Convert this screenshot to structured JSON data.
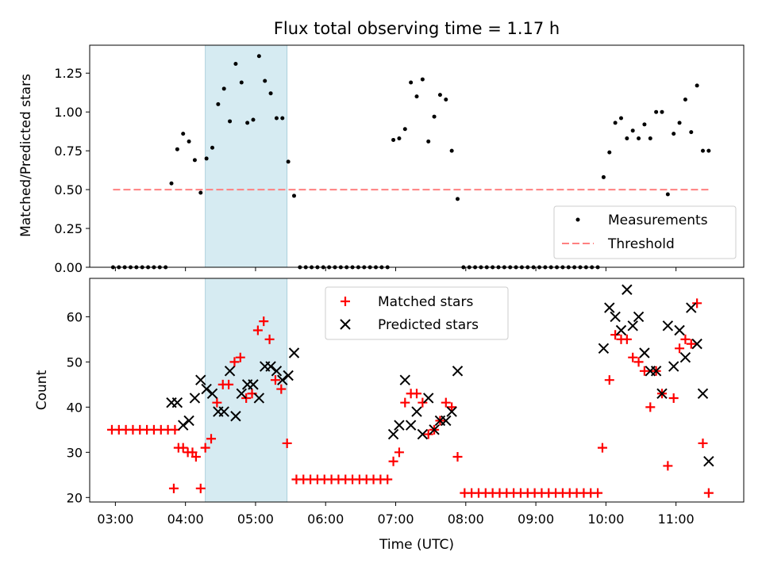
{
  "chart_data": [
    {
      "type": "scatter",
      "title": "Flux total observing time = 1.17 h",
      "xlabel": "",
      "ylabel": "Matched/Predicted stars",
      "ylim": [
        0,
        1.43
      ],
      "yticks": [
        "0.00",
        "0.25",
        "0.50",
        "0.75",
        "1.00",
        "1.25"
      ],
      "x_tick_labels_shown": false,
      "highlight_span": [
        "04:17",
        "05:27"
      ],
      "legend": {
        "position": "lower right",
        "entries": [
          "Measurements",
          "Threshold"
        ]
      },
      "series": [
        {
          "name": "Measurements",
          "marker": "dot",
          "color": "#000000",
          "points": [
            [
              "02:58",
              0
            ],
            [
              "03:03",
              0
            ],
            [
              "03:08",
              0
            ],
            [
              "03:13",
              0
            ],
            [
              "03:18",
              0
            ],
            [
              "03:23",
              0
            ],
            [
              "03:28",
              0
            ],
            [
              "03:33",
              0
            ],
            [
              "03:38",
              0
            ],
            [
              "03:43",
              0
            ],
            [
              "03:48",
              0.54
            ],
            [
              "03:53",
              0.76
            ],
            [
              "03:58",
              0.86
            ],
            [
              "04:03",
              0.81
            ],
            [
              "04:08",
              0.69
            ],
            [
              "04:13",
              0.48
            ],
            [
              "04:18",
              0.7
            ],
            [
              "04:23",
              0.77
            ],
            [
              "04:28",
              1.05
            ],
            [
              "04:33",
              1.15
            ],
            [
              "04:38",
              0.94
            ],
            [
              "04:43",
              1.31
            ],
            [
              "04:48",
              1.19
            ],
            [
              "04:53",
              0.93
            ],
            [
              "04:58",
              0.95
            ],
            [
              "05:03",
              1.36
            ],
            [
              "05:08",
              1.2
            ],
            [
              "05:13",
              1.12
            ],
            [
              "05:18",
              0.96
            ],
            [
              "05:23",
              0.96
            ],
            [
              "05:28",
              0.68
            ],
            [
              "05:33",
              0.46
            ],
            [
              "05:38",
              0
            ],
            [
              "05:43",
              0
            ],
            [
              "05:48",
              0
            ],
            [
              "05:53",
              0
            ],
            [
              "05:58",
              0
            ],
            [
              "06:03",
              0
            ],
            [
              "06:08",
              0
            ],
            [
              "06:13",
              0
            ],
            [
              "06:18",
              0
            ],
            [
              "06:23",
              0
            ],
            [
              "06:28",
              0
            ],
            [
              "06:33",
              0
            ],
            [
              "06:38",
              0
            ],
            [
              "06:43",
              0
            ],
            [
              "06:48",
              0
            ],
            [
              "06:53",
              0
            ],
            [
              "06:58",
              0.82
            ],
            [
              "07:03",
              0.83
            ],
            [
              "07:08",
              0.89
            ],
            [
              "07:13",
              1.19
            ],
            [
              "07:18",
              1.1
            ],
            [
              "07:23",
              1.21
            ],
            [
              "07:28",
              0.81
            ],
            [
              "07:33",
              0.97
            ],
            [
              "07:38",
              1.11
            ],
            [
              "07:43",
              1.08
            ],
            [
              "07:48",
              0.75
            ],
            [
              "07:53",
              0.44
            ],
            [
              "07:58",
              0
            ],
            [
              "08:03",
              0
            ],
            [
              "08:08",
              0
            ],
            [
              "08:13",
              0
            ],
            [
              "08:18",
              0
            ],
            [
              "08:23",
              0
            ],
            [
              "08:28",
              0
            ],
            [
              "08:33",
              0
            ],
            [
              "08:38",
              0
            ],
            [
              "08:43",
              0
            ],
            [
              "08:48",
              0
            ],
            [
              "08:53",
              0
            ],
            [
              "08:58",
              0
            ],
            [
              "09:03",
              0
            ],
            [
              "09:08",
              0
            ],
            [
              "09:13",
              0
            ],
            [
              "09:18",
              0
            ],
            [
              "09:23",
              0
            ],
            [
              "09:28",
              0
            ],
            [
              "09:33",
              0
            ],
            [
              "09:38",
              0
            ],
            [
              "09:43",
              0
            ],
            [
              "09:48",
              0
            ],
            [
              "09:53",
              0
            ],
            [
              "09:58",
              0.58
            ],
            [
              "10:03",
              0.74
            ],
            [
              "10:08",
              0.93
            ],
            [
              "10:13",
              0.96
            ],
            [
              "10:18",
              0.83
            ],
            [
              "10:23",
              0.88
            ],
            [
              "10:28",
              0.83
            ],
            [
              "10:33",
              0.92
            ],
            [
              "10:38",
              0.83
            ],
            [
              "10:43",
              1.0
            ],
            [
              "10:48",
              1.0
            ],
            [
              "10:53",
              0.47
            ],
            [
              "10:58",
              0.86
            ],
            [
              "11:03",
              0.93
            ],
            [
              "11:08",
              1.08
            ],
            [
              "11:13",
              0.87
            ],
            [
              "11:18",
              1.17
            ],
            [
              "11:23",
              0.75
            ],
            [
              "11:28",
              0.75
            ]
          ]
        },
        {
          "name": "Threshold",
          "style": "dashed",
          "color": "#ff8080",
          "points": [
            [
              "02:58",
              0.5
            ],
            [
              "11:28",
              0.5
            ]
          ]
        }
      ]
    },
    {
      "type": "scatter",
      "title": "",
      "xlabel": "Time (UTC)",
      "ylabel": "Count",
      "ylim": [
        19,
        68.5
      ],
      "yticks": [
        "20",
        "30",
        "40",
        "50",
        "60"
      ],
      "xlim": [
        "02:38",
        "11:58"
      ],
      "x_tick_labels": [
        "03:00",
        "04:00",
        "05:00",
        "06:00",
        "07:00",
        "08:00",
        "09:00",
        "10:00",
        "11:00"
      ],
      "highlight_span": [
        "04:17",
        "05:27"
      ],
      "legend": {
        "position": "upper center",
        "entries": [
          "Matched stars",
          "Predicted stars"
        ]
      },
      "series": [
        {
          "name": "Matched stars",
          "marker": "plus",
          "color": "#ff0000",
          "points": [
            [
              "02:57",
              35
            ],
            [
              "03:03",
              35
            ],
            [
              "03:09",
              35
            ],
            [
              "03:15",
              35
            ],
            [
              "03:21",
              35
            ],
            [
              "03:27",
              35
            ],
            [
              "03:33",
              35
            ],
            [
              "03:39",
              35
            ],
            [
              "03:45",
              35
            ],
            [
              "03:51",
              35
            ],
            [
              "03:50",
              22
            ],
            [
              "03:54",
              31
            ],
            [
              "03:58",
              31
            ],
            [
              "04:02",
              30
            ],
            [
              "04:06",
              30
            ],
            [
              "04:09",
              29
            ],
            [
              "04:13",
              22
            ],
            [
              "04:17",
              31
            ],
            [
              "04:22",
              33
            ],
            [
              "04:27",
              41
            ],
            [
              "04:32",
              45
            ],
            [
              "04:37",
              45
            ],
            [
              "04:42",
              50
            ],
            [
              "04:47",
              51
            ],
            [
              "04:52",
              42
            ],
            [
              "04:57",
              43
            ],
            [
              "05:02",
              57
            ],
            [
              "05:07",
              59
            ],
            [
              "05:12",
              55
            ],
            [
              "05:17",
              46
            ],
            [
              "05:22",
              44
            ],
            [
              "05:27",
              32
            ],
            [
              "05:35",
              24
            ],
            [
              "05:41",
              24
            ],
            [
              "05:47",
              24
            ],
            [
              "05:53",
              24
            ],
            [
              "05:59",
              24
            ],
            [
              "06:05",
              24
            ],
            [
              "06:11",
              24
            ],
            [
              "06:17",
              24
            ],
            [
              "06:23",
              24
            ],
            [
              "06:29",
              24
            ],
            [
              "06:35",
              24
            ],
            [
              "06:41",
              24
            ],
            [
              "06:47",
              24
            ],
            [
              "06:53",
              24
            ],
            [
              "06:58",
              28
            ],
            [
              "07:03",
              30
            ],
            [
              "07:08",
              41
            ],
            [
              "07:13",
              43
            ],
            [
              "07:18",
              43
            ],
            [
              "07:23",
              41
            ],
            [
              "07:28",
              34
            ],
            [
              "07:33",
              35
            ],
            [
              "07:38",
              37
            ],
            [
              "07:43",
              41
            ],
            [
              "07:48",
              40
            ],
            [
              "07:53",
              29
            ],
            [
              "07:59",
              21
            ],
            [
              "08:05",
              21
            ],
            [
              "08:11",
              21
            ],
            [
              "08:17",
              21
            ],
            [
              "08:23",
              21
            ],
            [
              "08:29",
              21
            ],
            [
              "08:35",
              21
            ],
            [
              "08:41",
              21
            ],
            [
              "08:47",
              21
            ],
            [
              "08:53",
              21
            ],
            [
              "08:59",
              21
            ],
            [
              "09:05",
              21
            ],
            [
              "09:11",
              21
            ],
            [
              "09:17",
              21
            ],
            [
              "09:23",
              21
            ],
            [
              "09:29",
              21
            ],
            [
              "09:35",
              21
            ],
            [
              "09:41",
              21
            ],
            [
              "09:47",
              21
            ],
            [
              "09:53",
              21
            ],
            [
              "09:57",
              31
            ],
            [
              "10:03",
              46
            ],
            [
              "10:08",
              56
            ],
            [
              "10:13",
              55
            ],
            [
              "10:18",
              55
            ],
            [
              "10:23",
              51
            ],
            [
              "10:28",
              50
            ],
            [
              "10:33",
              48
            ],
            [
              "10:38",
              40
            ],
            [
              "10:43",
              48
            ],
            [
              "10:48",
              43
            ],
            [
              "10:53",
              27
            ],
            [
              "10:58",
              42
            ],
            [
              "11:03",
              53
            ],
            [
              "11:08",
              55
            ],
            [
              "11:13",
              54
            ],
            [
              "11:18",
              63
            ],
            [
              "11:23",
              32
            ],
            [
              "11:28",
              21
            ]
          ]
        },
        {
          "name": "Predicted stars",
          "marker": "x",
          "color": "#000000",
          "points": [
            [
              "03:48",
              41
            ],
            [
              "03:53",
              41
            ],
            [
              "03:58",
              36
            ],
            [
              "04:03",
              37
            ],
            [
              "04:08",
              42
            ],
            [
              "04:13",
              46
            ],
            [
              "04:18",
              44
            ],
            [
              "04:23",
              43
            ],
            [
              "04:28",
              39
            ],
            [
              "04:33",
              39
            ],
            [
              "04:38",
              48
            ],
            [
              "04:43",
              38
            ],
            [
              "04:48",
              43
            ],
            [
              "04:53",
              45
            ],
            [
              "04:58",
              45
            ],
            [
              "05:03",
              42
            ],
            [
              "05:08",
              49
            ],
            [
              "05:13",
              49
            ],
            [
              "05:18",
              48
            ],
            [
              "05:23",
              46
            ],
            [
              "05:28",
              47
            ],
            [
              "05:33",
              52
            ],
            [
              "06:58",
              34
            ],
            [
              "07:03",
              36
            ],
            [
              "07:08",
              46
            ],
            [
              "07:13",
              36
            ],
            [
              "07:18",
              39
            ],
            [
              "07:23",
              34
            ],
            [
              "07:28",
              42
            ],
            [
              "07:33",
              35
            ],
            [
              "07:38",
              37
            ],
            [
              "07:43",
              37
            ],
            [
              "07:48",
              39
            ],
            [
              "07:53",
              48
            ],
            [
              "09:58",
              53
            ],
            [
              "10:03",
              62
            ],
            [
              "10:08",
              60
            ],
            [
              "10:13",
              57
            ],
            [
              "10:18",
              66
            ],
            [
              "10:23",
              58
            ],
            [
              "10:28",
              60
            ],
            [
              "10:33",
              52
            ],
            [
              "10:38",
              48
            ],
            [
              "10:43",
              48
            ],
            [
              "10:48",
              43
            ],
            [
              "10:53",
              58
            ],
            [
              "10:58",
              49
            ],
            [
              "11:03",
              57
            ],
            [
              "11:08",
              51
            ],
            [
              "11:13",
              62
            ],
            [
              "11:18",
              54
            ],
            [
              "11:23",
              43
            ],
            [
              "11:28",
              28
            ]
          ]
        }
      ]
    }
  ]
}
